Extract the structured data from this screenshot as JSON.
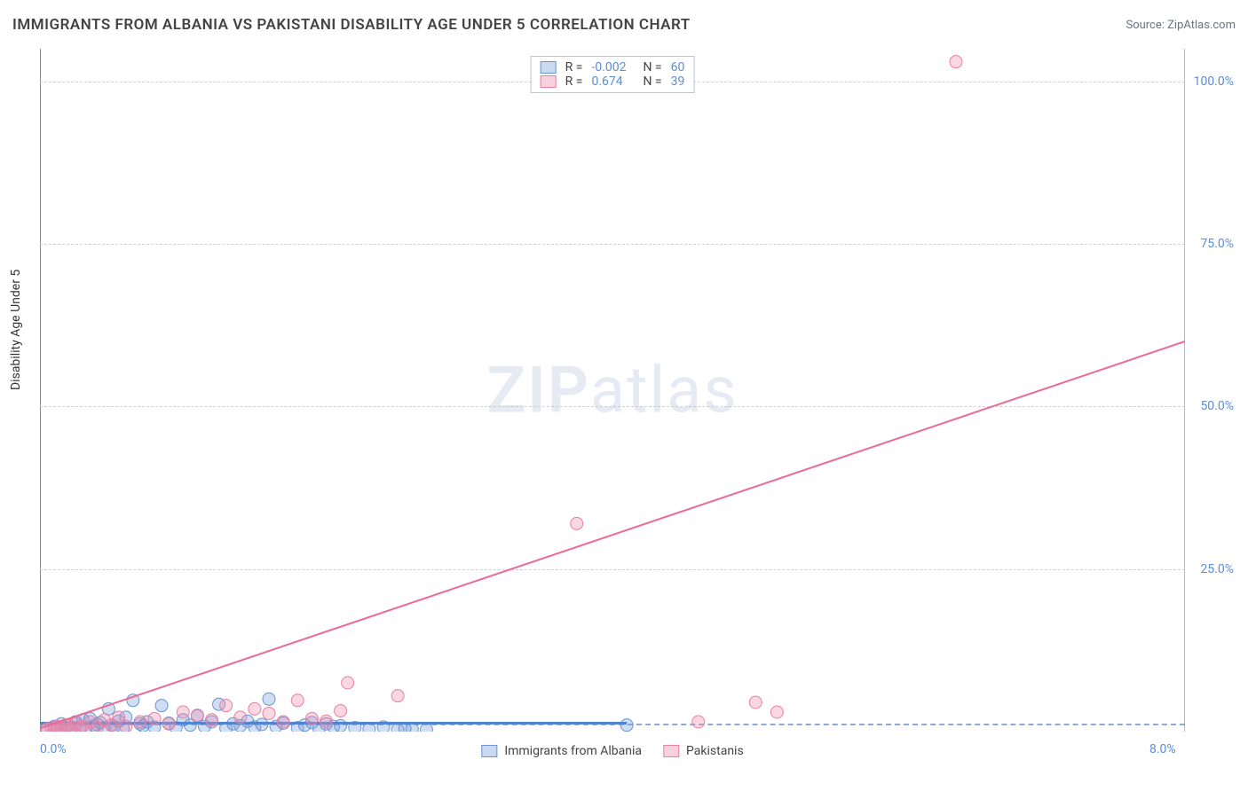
{
  "header": {
    "title": "IMMIGRANTS FROM ALBANIA VS PAKISTANI DISABILITY AGE UNDER 5 CORRELATION CHART",
    "source_prefix": "Source: ",
    "source_name": "ZipAtlas.com"
  },
  "watermark": {
    "zip": "ZIP",
    "atlas": "atlas"
  },
  "chart": {
    "type": "scatter",
    "y_label": "Disability Age Under 5",
    "xlim": [
      0,
      8
    ],
    "ylim": [
      0,
      105
    ],
    "x_ticks": [
      {
        "value": 0,
        "label": "0.0%"
      },
      {
        "value": 8,
        "label": "8.0%"
      }
    ],
    "y_ticks": [
      {
        "value": 25,
        "label": "25.0%"
      },
      {
        "value": 50,
        "label": "50.0%"
      },
      {
        "value": 75,
        "label": "75.0%"
      },
      {
        "value": 100,
        "label": "100.0%"
      }
    ],
    "baseline_y": 1.2,
    "grid_color": "#d0d0d0",
    "background_color": "#ffffff",
    "series": {
      "albania": {
        "label": "Immigrants from Albania",
        "fill": "rgba(120,160,220,0.35)",
        "stroke": "#6b95d4",
        "marker_radius": 7,
        "R": "-0.002",
        "N": "60",
        "regression": {
          "x1": 0,
          "y1": 1.3,
          "x2": 4.1,
          "y2": 1.3,
          "color": "#5284d0",
          "width": 3
        },
        "points": [
          [
            0.05,
            0.5
          ],
          [
            0.1,
            0.8
          ],
          [
            0.12,
            0.3
          ],
          [
            0.15,
            1.2
          ],
          [
            0.18,
            0.6
          ],
          [
            0.2,
            1.0
          ],
          [
            0.22,
            0.4
          ],
          [
            0.25,
            1.5
          ],
          [
            0.28,
            0.7
          ],
          [
            0.3,
            1.8
          ],
          [
            0.32,
            0.5
          ],
          [
            0.35,
            2.0
          ],
          [
            0.38,
            0.9
          ],
          [
            0.4,
            1.1
          ],
          [
            0.42,
            1.4
          ],
          [
            0.45,
            0.6
          ],
          [
            0.48,
            3.5
          ],
          [
            0.5,
            1.0
          ],
          [
            0.52,
            0.8
          ],
          [
            0.55,
            1.6
          ],
          [
            0.58,
            0.5
          ],
          [
            0.6,
            2.2
          ],
          [
            0.65,
            4.8
          ],
          [
            0.7,
            1.2
          ],
          [
            0.72,
            0.9
          ],
          [
            0.75,
            1.5
          ],
          [
            0.8,
            0.7
          ],
          [
            0.85,
            4.0
          ],
          [
            0.9,
            1.3
          ],
          [
            0.95,
            0.6
          ],
          [
            1.0,
            1.8
          ],
          [
            1.05,
            1.0
          ],
          [
            1.1,
            2.4
          ],
          [
            1.15,
            0.8
          ],
          [
            1.2,
            1.5
          ],
          [
            1.25,
            4.2
          ],
          [
            1.3,
            0.5
          ],
          [
            1.35,
            1.2
          ],
          [
            1.4,
            0.9
          ],
          [
            1.45,
            1.6
          ],
          [
            1.5,
            0.7
          ],
          [
            1.55,
            1.1
          ],
          [
            1.6,
            5.0
          ],
          [
            1.65,
            0.8
          ],
          [
            1.7,
            1.3
          ],
          [
            1.8,
            0.6
          ],
          [
            1.85,
            1.0
          ],
          [
            1.9,
            1.4
          ],
          [
            1.95,
            0.5
          ],
          [
            2.0,
            1.2
          ],
          [
            2.05,
            0.8
          ],
          [
            2.1,
            0.9
          ],
          [
            2.2,
            0.6
          ],
          [
            2.3,
            0.4
          ],
          [
            2.4,
            0.7
          ],
          [
            2.5,
            0.3
          ],
          [
            2.55,
            0.5
          ],
          [
            2.6,
            0.4
          ],
          [
            2.7,
            0.3
          ],
          [
            4.1,
            1.0
          ]
        ]
      },
      "pakistani": {
        "label": "Pakistanis",
        "fill": "rgba(240,140,170,0.35)",
        "stroke": "#e87fa4",
        "marker_radius": 7,
        "R": "0.674",
        "N": "39",
        "regression": {
          "x1": 0,
          "y1": 0.5,
          "x2": 8,
          "y2": 60,
          "color": "#ec6a97",
          "width": 2
        },
        "points": [
          [
            0.05,
            0.4
          ],
          [
            0.08,
            0.6
          ],
          [
            0.1,
            0.3
          ],
          [
            0.12,
            0.8
          ],
          [
            0.15,
            0.5
          ],
          [
            0.18,
            1.0
          ],
          [
            0.2,
            0.4
          ],
          [
            0.22,
            0.7
          ],
          [
            0.25,
            1.2
          ],
          [
            0.28,
            0.5
          ],
          [
            0.3,
            0.9
          ],
          [
            0.35,
            1.5
          ],
          [
            0.4,
            0.6
          ],
          [
            0.45,
            1.8
          ],
          [
            0.5,
            1.0
          ],
          [
            0.55,
            2.2
          ],
          [
            0.6,
            0.8
          ],
          [
            0.7,
            1.5
          ],
          [
            0.8,
            2.0
          ],
          [
            0.9,
            1.2
          ],
          [
            1.0,
            3.0
          ],
          [
            1.1,
            2.5
          ],
          [
            1.2,
            1.8
          ],
          [
            1.3,
            4.0
          ],
          [
            1.4,
            2.2
          ],
          [
            1.5,
            3.5
          ],
          [
            1.6,
            2.8
          ],
          [
            1.7,
            1.5
          ],
          [
            1.8,
            4.8
          ],
          [
            1.9,
            2.0
          ],
          [
            2.0,
            1.6
          ],
          [
            2.1,
            3.2
          ],
          [
            2.15,
            7.5
          ],
          [
            2.5,
            5.5
          ],
          [
            3.75,
            32.0
          ],
          [
            4.6,
            1.5
          ],
          [
            5.0,
            4.5
          ],
          [
            5.15,
            3.0
          ],
          [
            6.4,
            103.0
          ]
        ]
      }
    },
    "legend_top": {
      "row_prefix_R": "R = ",
      "row_prefix_N": "N = "
    }
  }
}
